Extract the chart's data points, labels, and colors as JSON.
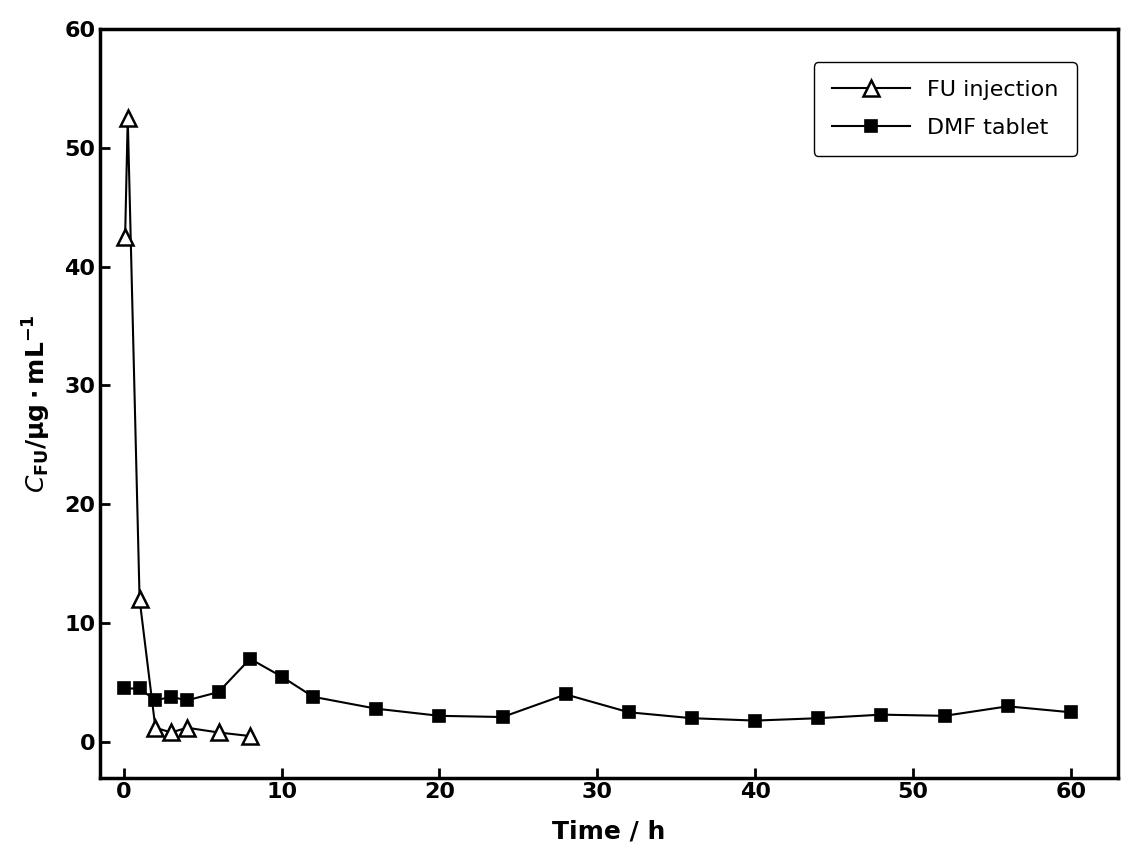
{
  "fu_injection_x": [
    0.083,
    0.25,
    1,
    2,
    3,
    4,
    6,
    8
  ],
  "fu_injection_y": [
    42.5,
    52.5,
    12.0,
    1.2,
    0.8,
    1.2,
    0.8,
    0.5
  ],
  "dmf_tablet_x": [
    0,
    1,
    2,
    3,
    4,
    6,
    8,
    10,
    12,
    16,
    20,
    24,
    28,
    32,
    36,
    40,
    44,
    48,
    52,
    56,
    60
  ],
  "dmf_tablet_y": [
    4.5,
    4.5,
    3.5,
    3.8,
    3.5,
    4.2,
    7.0,
    5.5,
    3.8,
    2.8,
    2.2,
    2.1,
    4.0,
    2.5,
    2.0,
    1.8,
    2.0,
    2.3,
    2.2,
    3.0,
    2.5
  ],
  "xlabel": "Time / h",
  "ylabel_part1": "C",
  "ylabel_sub": "FU",
  "ylabel_part2": "/μg.mL",
  "ylabel_sup": "-1",
  "xlim": [
    -1.5,
    63
  ],
  "ylim": [
    -3,
    60
  ],
  "yticks": [
    0,
    10,
    20,
    30,
    40,
    50,
    60
  ],
  "xticks": [
    0,
    10,
    20,
    30,
    40,
    50,
    60
  ],
  "legend_labels": [
    "FU injection",
    "DMF tablet"
  ],
  "background_color": "#ffffff",
  "axis_fontsize": 18,
  "tick_fontsize": 16,
  "legend_fontsize": 16
}
